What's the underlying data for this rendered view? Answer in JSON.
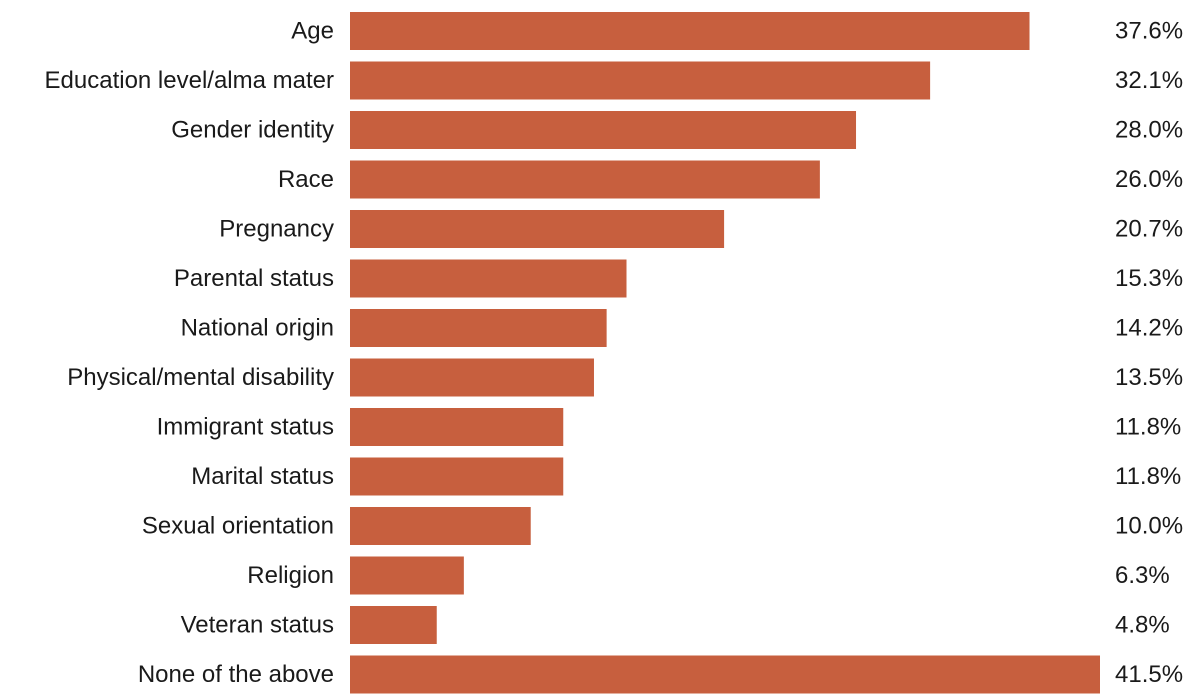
{
  "chart_data": {
    "type": "bar",
    "orientation": "horizontal",
    "title": "",
    "xlabel": "",
    "ylabel": "",
    "categories": [
      "Age",
      "Education level/alma mater",
      "Gender identity",
      "Race",
      "Pregnancy",
      "Parental status",
      "National origin",
      "Physical/mental disability",
      "Immigrant status",
      "Marital status",
      "Sexual orientation",
      "Religion",
      "Veteran status",
      "None of the above"
    ],
    "values": [
      37.6,
      32.1,
      28.0,
      26.0,
      20.7,
      15.3,
      14.2,
      13.5,
      11.8,
      11.8,
      10.0,
      6.3,
      4.8,
      41.5
    ],
    "value_labels": [
      "37.6%",
      "32.1%",
      "28.0%",
      "26.0%",
      "20.7%",
      "15.3%",
      "14.2%",
      "13.5%",
      "11.8%",
      "11.8%",
      "10.0%",
      "6.3%",
      "4.8%",
      "41.5%"
    ],
    "xlim": [
      0,
      41.5
    ],
    "grid": false,
    "legend": "none",
    "bar_color": "#c75f3e"
  }
}
